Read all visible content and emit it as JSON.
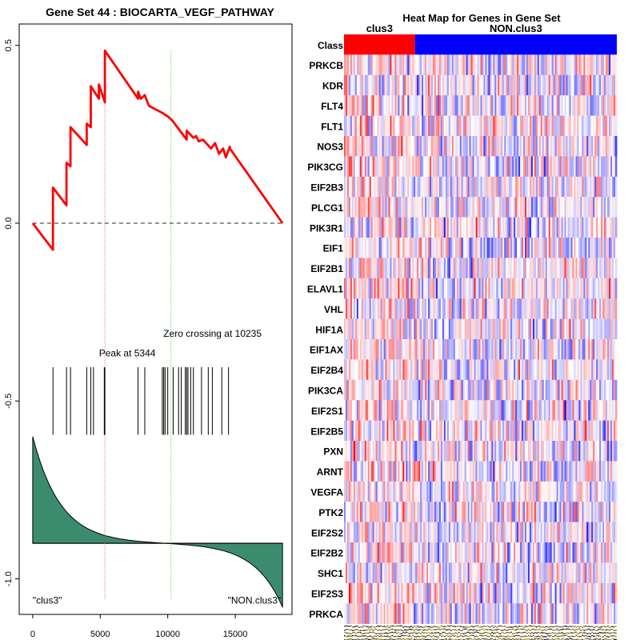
{
  "chart_data": [
    {
      "type": "line",
      "title": "Gene Set  44 : BIOCARTA_VEGF_PATHWAY",
      "xlabel": "",
      "ylabel": "",
      "xlim": [
        -1000,
        19200
      ],
      "ylim": [
        -1.1,
        0.56
      ],
      "x_ticks": [
        0,
        5000,
        10000,
        15000
      ],
      "x_tick_labels": [
        "0",
        "5000",
        "10000",
        "15000"
      ],
      "y_ticks": [
        0.5,
        0.0,
        -0.5,
        -1.0
      ],
      "y_tick_labels": [
        "0.5",
        "0.0",
        "-0.5",
        "-1.0"
      ],
      "series": [
        {
          "name": "Running enrichment score",
          "color": "#ff0000",
          "x": [
            0,
            1500,
            1500,
            2500,
            2500,
            2800,
            2800,
            4000,
            4000,
            4300,
            4300,
            4900,
            4900,
            5344,
            5344,
            7800,
            7800,
            8000,
            8300,
            8600,
            9600,
            10000,
            10300,
            11400,
            11400,
            11900,
            12100,
            12300,
            12600,
            13200,
            13500,
            13800,
            14100,
            14300,
            14600,
            14600,
            18500
          ],
          "y": [
            0.0,
            -0.075,
            0.1,
            0.05,
            0.17,
            0.16,
            0.27,
            0.22,
            0.28,
            0.27,
            0.385,
            0.35,
            0.39,
            0.34,
            0.485,
            0.35,
            0.37,
            0.35,
            0.36,
            0.33,
            0.31,
            0.3,
            0.29,
            0.235,
            0.26,
            0.24,
            0.245,
            0.23,
            0.235,
            0.21,
            0.225,
            0.195,
            0.21,
            0.185,
            0.215,
            0.21,
            0.0
          ]
        }
      ],
      "zero_line": 0.0,
      "hits": [
        1500,
        2500,
        2800,
        4000,
        4300,
        4500,
        5300,
        5344,
        7800,
        8300,
        9600,
        9700,
        9800,
        10000,
        10400,
        10800,
        11000,
        11300,
        11400,
        11500,
        11700,
        11900,
        12500,
        13000,
        13300,
        14000,
        14500
      ],
      "ranked_metric": {
        "color": "#3b8c6e",
        "baseline": -0.9,
        "start": -0.6,
        "end": -1.08
      },
      "peak_x": 5344,
      "zero_crossing_x": 10235,
      "annotations": {
        "peak": "Peak at 5344",
        "zero_crossing": "Zero crossing at 10235",
        "left_class": "\"clus3\"",
        "right_class": "\"NON.clus3\""
      }
    },
    {
      "type": "heatmap",
      "title": "Heat Map for Genes in Gene Set",
      "class_row_label": "Class",
      "classes": [
        {
          "name": "clus3",
          "color": "#ff0000",
          "fraction": 0.26
        },
        {
          "name": "NON.clus3",
          "color": "#0000ff",
          "fraction": 0.74
        }
      ],
      "genes": [
        "PRKCB",
        "KDR",
        "FLT4",
        "FLT1",
        "NOS3",
        "PIK3CG",
        "EIF2B3",
        "PLCG1",
        "PIK3R1",
        "EIF1",
        "EIF2B1",
        "ELAVL1",
        "VHL",
        "HIF1A",
        "EIF1AX",
        "EIF2B4",
        "PIK3CA",
        "EIF2S1",
        "EIF2B5",
        "PXN",
        "ARNT",
        "VEGFA",
        "PTK2",
        "EIF2S2",
        "EIF2B2",
        "SHC1",
        "EIF2S3",
        "PRKCA"
      ],
      "n_samples": 172,
      "color_scale": {
        "low": "#0000ff",
        "mid": "#ffffff",
        "high": "#ff0000"
      }
    }
  ]
}
